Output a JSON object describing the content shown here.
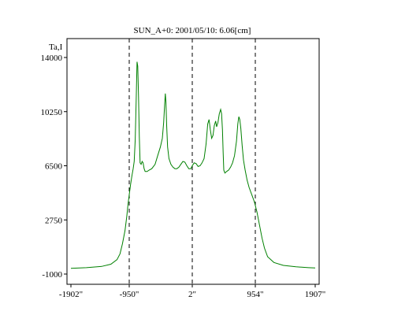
{
  "chart_data": {
    "type": "line",
    "title": "SUN_A+0: 2001/05/10: 6.06[cm]",
    "ylabel": "Ta,I",
    "xlabel": "",
    "x_ticks": [
      {
        "value": -1902,
        "label": "-1902\""
      },
      {
        "value": -950,
        "label": "-950\""
      },
      {
        "value": 2,
        "label": "2\""
      },
      {
        "value": 954,
        "label": "954\""
      },
      {
        "value": 1907,
        "label": "1907\""
      }
    ],
    "y_ticks": [
      {
        "value": -1000,
        "label": "-1000"
      },
      {
        "value": 2750,
        "label": "2750"
      },
      {
        "value": 6500,
        "label": "6500"
      },
      {
        "value": 10250,
        "label": "10250"
      },
      {
        "value": 14000,
        "label": "14000"
      }
    ],
    "xlim": [
      -1902,
      1907
    ],
    "ylim": [
      -1000,
      14000
    ],
    "vlines": [
      -950,
      2,
      954
    ],
    "grid": false,
    "series": [
      {
        "color": "#008000",
        "points": [
          [
            -1902,
            -600
          ],
          [
            -1650,
            -560
          ],
          [
            -1400,
            -470
          ],
          [
            -1250,
            -320
          ],
          [
            -1150,
            0
          ],
          [
            -1100,
            400
          ],
          [
            -1060,
            1100
          ],
          [
            -1020,
            2000
          ],
          [
            -990,
            3000
          ],
          [
            -970,
            3800
          ],
          [
            -950,
            4500
          ],
          [
            -930,
            5200
          ],
          [
            -910,
            5800
          ],
          [
            -890,
            6300
          ],
          [
            -875,
            6800
          ],
          [
            -860,
            8300
          ],
          [
            -845,
            11000
          ],
          [
            -832,
            13700
          ],
          [
            -822,
            13400
          ],
          [
            -810,
            11300
          ],
          [
            -798,
            8500
          ],
          [
            -786,
            6700
          ],
          [
            -770,
            6600
          ],
          [
            -755,
            6800
          ],
          [
            -740,
            6700
          ],
          [
            -725,
            6300
          ],
          [
            -710,
            6100
          ],
          [
            -680,
            6100
          ],
          [
            -650,
            6200
          ],
          [
            -610,
            6300
          ],
          [
            -560,
            6600
          ],
          [
            -520,
            7200
          ],
          [
            -480,
            7800
          ],
          [
            -450,
            8400
          ],
          [
            -430,
            9500
          ],
          [
            -415,
            10800
          ],
          [
            -405,
            11500
          ],
          [
            -395,
            10900
          ],
          [
            -385,
            9300
          ],
          [
            -370,
            7800
          ],
          [
            -350,
            7000
          ],
          [
            -320,
            6600
          ],
          [
            -290,
            6400
          ],
          [
            -260,
            6300
          ],
          [
            -230,
            6300
          ],
          [
            -200,
            6400
          ],
          [
            -170,
            6600
          ],
          [
            -140,
            6800
          ],
          [
            -110,
            6750
          ],
          [
            -80,
            6500
          ],
          [
            -50,
            6300
          ],
          [
            -20,
            6300
          ],
          [
            2,
            6500
          ],
          [
            30,
            6700
          ],
          [
            60,
            6650
          ],
          [
            90,
            6450
          ],
          [
            120,
            6500
          ],
          [
            150,
            6700
          ],
          [
            180,
            7000
          ],
          [
            210,
            8000
          ],
          [
            235,
            9400
          ],
          [
            255,
            9700
          ],
          [
            275,
            9000
          ],
          [
            295,
            8400
          ],
          [
            315,
            8600
          ],
          [
            335,
            9300
          ],
          [
            355,
            9600
          ],
          [
            370,
            9200
          ],
          [
            390,
            9500
          ],
          [
            410,
            10100
          ],
          [
            430,
            10400
          ],
          [
            445,
            10100
          ],
          [
            458,
            9000
          ],
          [
            468,
            7400
          ],
          [
            478,
            6200
          ],
          [
            495,
            6000
          ],
          [
            520,
            6100
          ],
          [
            550,
            6200
          ],
          [
            580,
            6400
          ],
          [
            610,
            6700
          ],
          [
            640,
            7200
          ],
          [
            670,
            8200
          ],
          [
            690,
            9400
          ],
          [
            705,
            9900
          ],
          [
            720,
            9700
          ],
          [
            735,
            9100
          ],
          [
            755,
            7900
          ],
          [
            775,
            6900
          ],
          [
            800,
            6200
          ],
          [
            830,
            5500
          ],
          [
            860,
            5000
          ],
          [
            900,
            4500
          ],
          [
            940,
            4000
          ],
          [
            980,
            3300
          ],
          [
            1020,
            2400
          ],
          [
            1060,
            1500
          ],
          [
            1100,
            800
          ],
          [
            1150,
            200
          ],
          [
            1250,
            -200
          ],
          [
            1400,
            -400
          ],
          [
            1600,
            -500
          ],
          [
            1800,
            -560
          ],
          [
            1907,
            -580
          ]
        ]
      }
    ]
  }
}
